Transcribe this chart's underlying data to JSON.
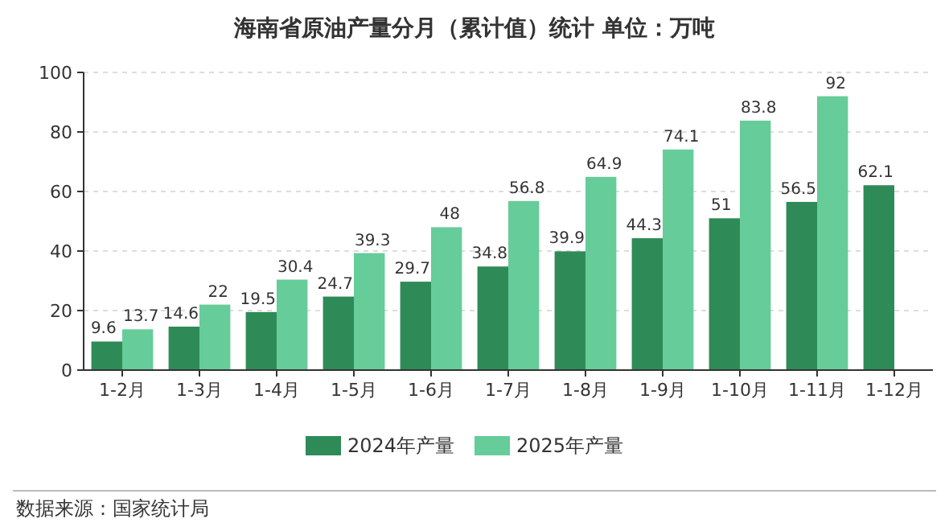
{
  "chart_data": {
    "type": "bar",
    "title": "海南省原油产量分月（累计值）统计  单位：万吨",
    "categories": [
      "1-2月",
      "1-3月",
      "1-4月",
      "1-5月",
      "1-6月",
      "1-7月",
      "1-8月",
      "1-9月",
      "1-10月",
      "1-11月",
      "1-12月"
    ],
    "series": [
      {
        "name": "2024年产量",
        "color": "#2e8b57",
        "values": [
          9.6,
          14.6,
          19.5,
          24.7,
          29.7,
          34.8,
          39.9,
          44.3,
          51,
          56.5,
          62.1
        ]
      },
      {
        "name": "2025年产量",
        "color": "#66cc99",
        "values": [
          13.7,
          22,
          30.4,
          39.3,
          48,
          56.8,
          64.9,
          74.1,
          83.8,
          92,
          null
        ]
      }
    ],
    "ylim": [
      0,
      100
    ],
    "yticks": [
      0,
      20,
      40,
      60,
      80,
      100
    ],
    "grid": "y",
    "legend": "bottom",
    "data_labels": true,
    "annotations": [
      "数据来源：国家统计局"
    ]
  }
}
